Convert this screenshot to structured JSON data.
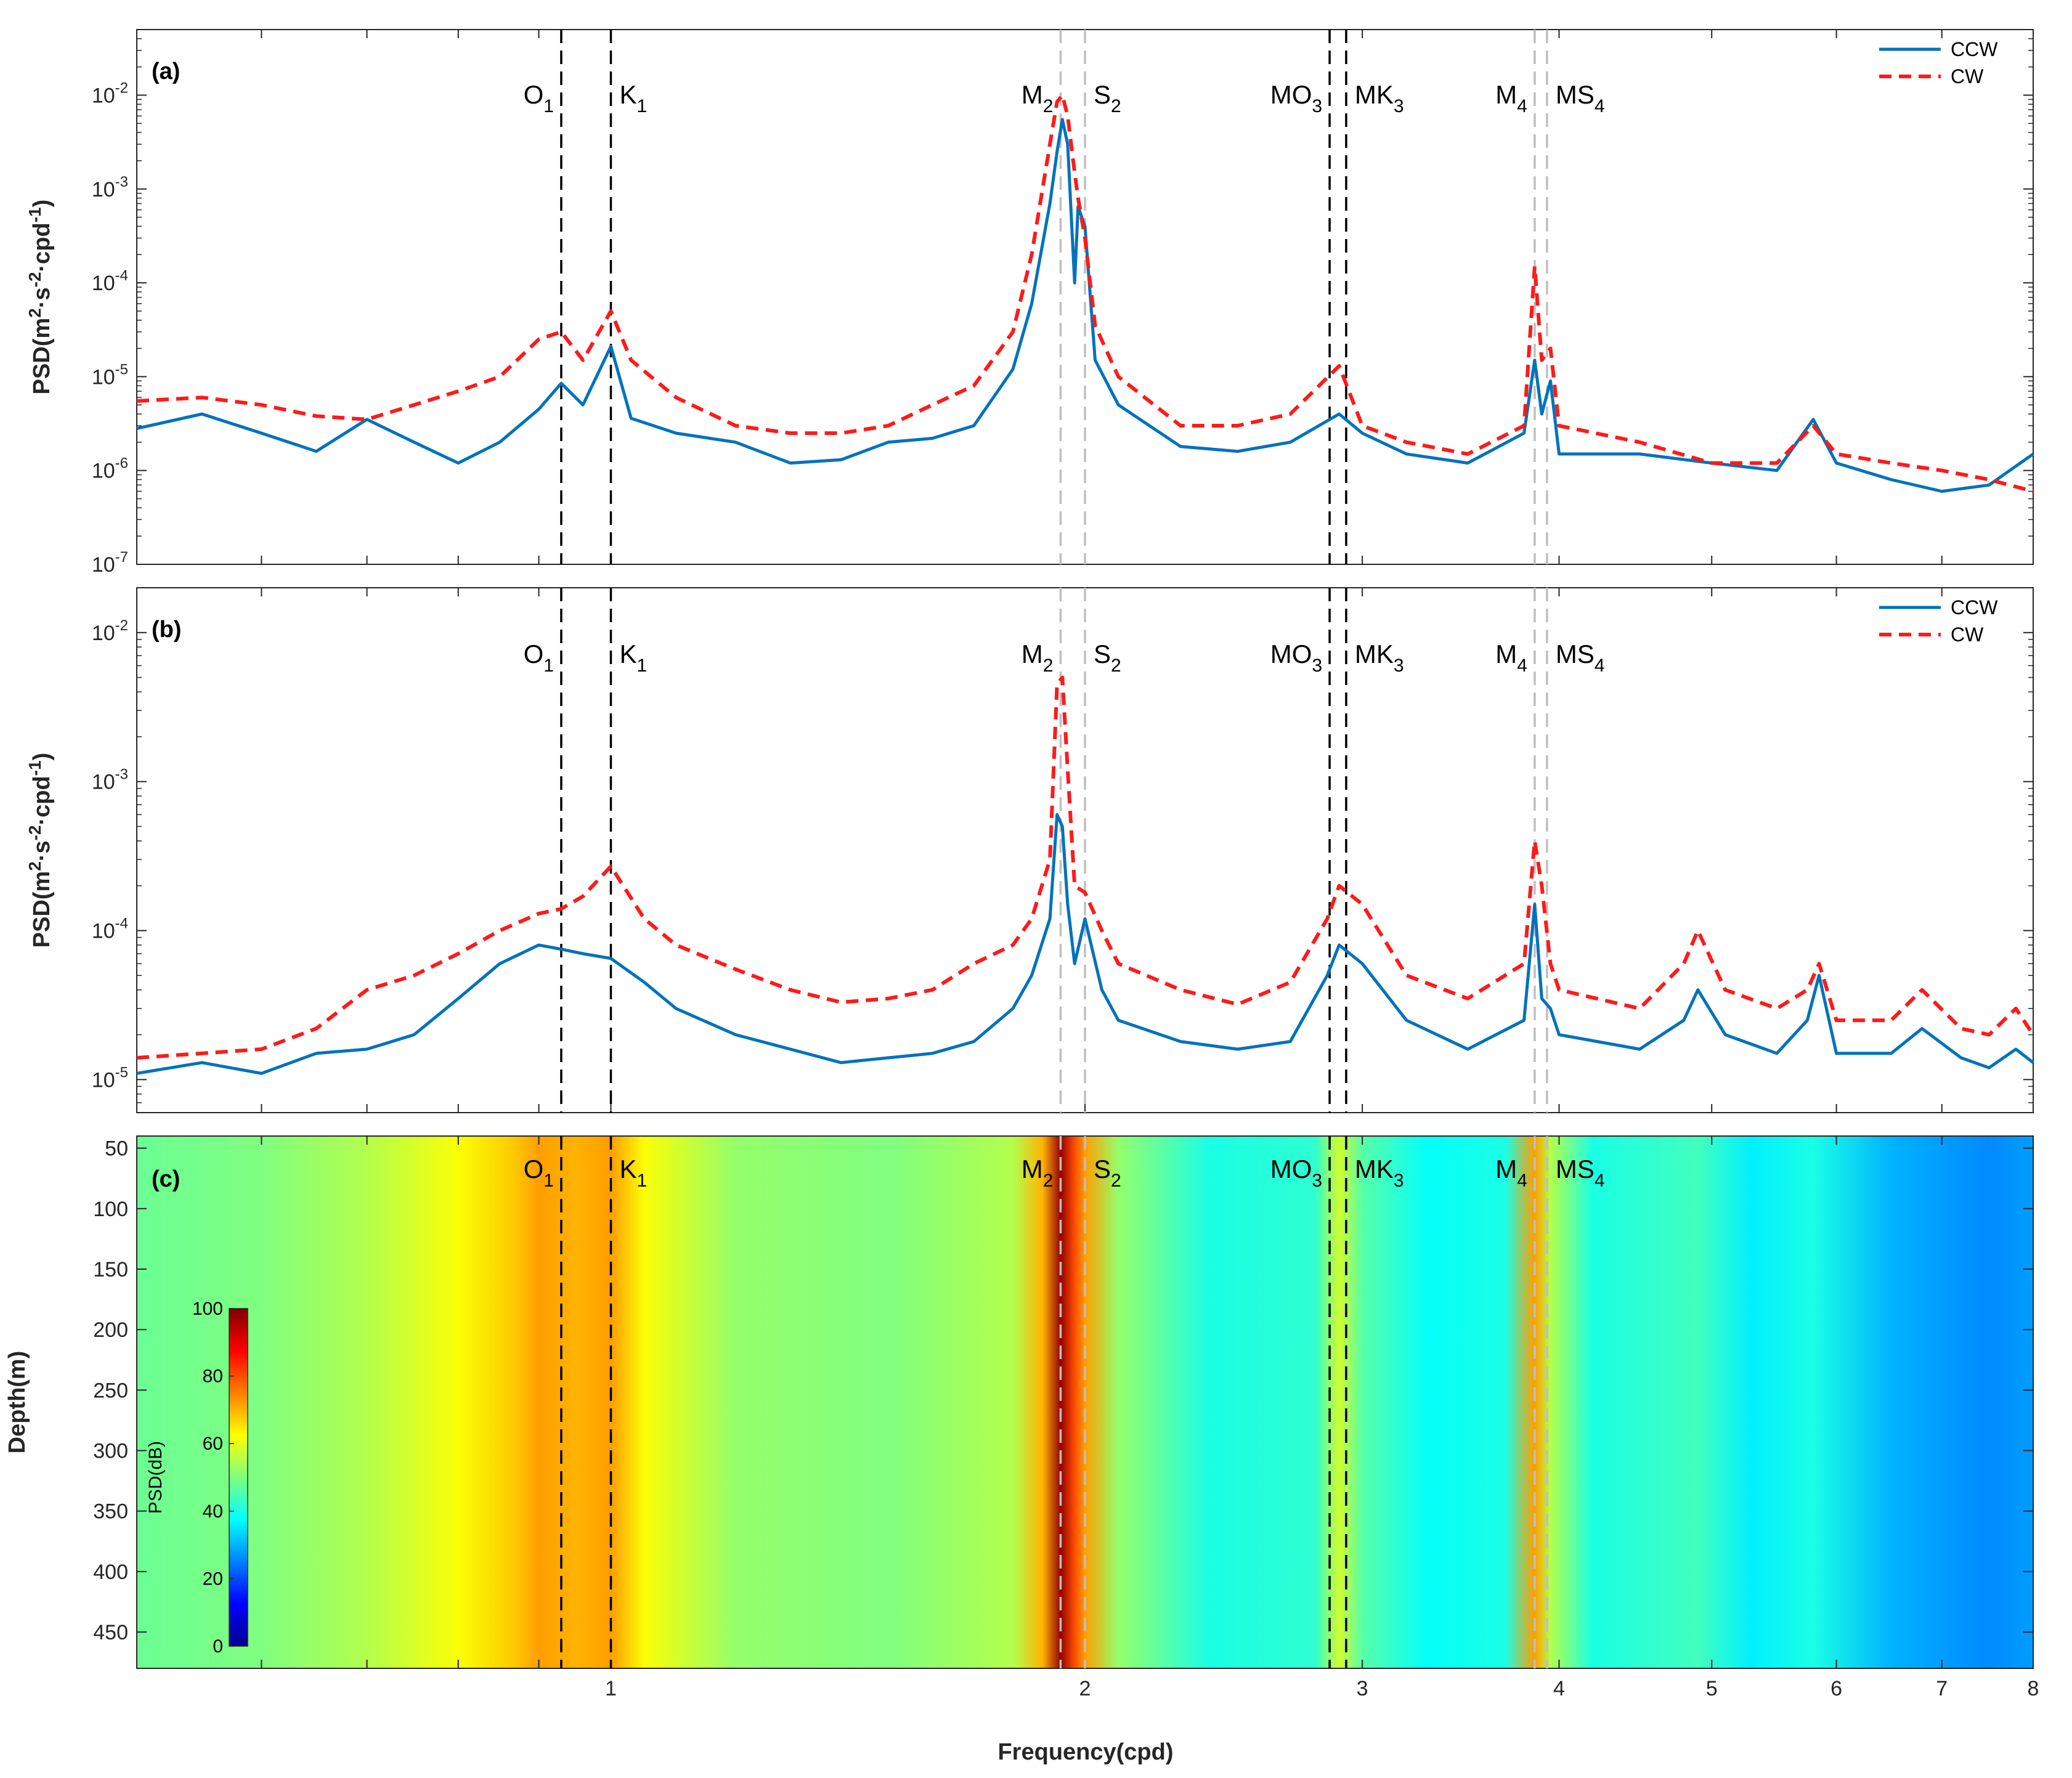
{
  "figure": {
    "xlabel": "Frequency(cpd)",
    "colors": {
      "ccw": "#0072BD",
      "cw": "#FF1A1A",
      "axis": "#262626"
    }
  },
  "chart_data": [
    {
      "panel": "(a)",
      "type": "line",
      "xscale": "log",
      "yscale": "log",
      "xlim": [
        0.5,
        8
      ],
      "ylim": [
        1e-07,
        0.05
      ],
      "ylabel_parts": {
        "main": "PSD(m",
        "e1": "2",
        "mid": "·s",
        "e2": "-2",
        "mid2": "·cpd",
        "e3": "-1",
        "end": ")"
      },
      "yticks": [
        {
          "v": 1e-07,
          "base": "10",
          "exp": "-7"
        },
        {
          "v": 1e-06,
          "base": "10",
          "exp": "-6"
        },
        {
          "v": 1e-05,
          "base": "10",
          "exp": "-5"
        },
        {
          "v": 0.0001,
          "base": "10",
          "exp": "-4"
        },
        {
          "v": 0.001,
          "base": "10",
          "exp": "-3"
        },
        {
          "v": 0.01,
          "base": "10",
          "exp": "-2"
        }
      ],
      "legend": {
        "position": "top-right",
        "entries": [
          "CCW",
          "CW"
        ]
      },
      "series": [
        {
          "name": "CCW",
          "style": "solid",
          "x": [
            0.5,
            0.55,
            0.6,
            0.65,
            0.7,
            0.75,
            0.8,
            0.85,
            0.9,
            0.93,
            0.96,
            1.0,
            1.03,
            1.1,
            1.2,
            1.3,
            1.4,
            1.5,
            1.6,
            1.7,
            1.8,
            1.85,
            1.9,
            1.92,
            1.935,
            1.95,
            1.97,
            1.98,
            2.0,
            2.03,
            2.1,
            2.3,
            2.5,
            2.7,
            2.9,
            3.0,
            3.2,
            3.5,
            3.8,
            3.86,
            3.9,
            3.95,
            4.0,
            4.5,
            5.0,
            5.5,
            5.8,
            6.0,
            6.5,
            7.0,
            7.5,
            8.0
          ],
          "y": [
            2.8e-06,
            4e-06,
            2.5e-06,
            1.6e-06,
            3.5e-06,
            2e-06,
            1.2e-06,
            2e-06,
            4.5e-06,
            8.5e-06,
            5e-06,
            2.1e-05,
            3.6e-06,
            2.5e-06,
            2e-06,
            1.2e-06,
            1.3e-06,
            2e-06,
            2.2e-06,
            3e-06,
            1.2e-05,
            6e-05,
            0.0007,
            0.0025,
            0.0055,
            0.003,
            0.0001,
            0.00065,
            0.0004,
            1.5e-05,
            5e-06,
            1.8e-06,
            1.6e-06,
            2e-06,
            4e-06,
            2.5e-06,
            1.5e-06,
            1.2e-06,
            2.5e-06,
            1.5e-05,
            4e-06,
            9e-06,
            1.5e-06,
            1.5e-06,
            1.2e-06,
            1e-06,
            3.5e-06,
            1.2e-06,
            8e-07,
            6e-07,
            7e-07,
            1.5e-06
          ]
        },
        {
          "name": "CW",
          "style": "dashed",
          "x": [
            0.5,
            0.55,
            0.6,
            0.65,
            0.7,
            0.75,
            0.8,
            0.85,
            0.9,
            0.93,
            0.96,
            1.0,
            1.03,
            1.1,
            1.2,
            1.3,
            1.4,
            1.5,
            1.6,
            1.7,
            1.8,
            1.85,
            1.9,
            1.92,
            1.935,
            1.95,
            1.97,
            1.98,
            2.0,
            2.03,
            2.1,
            2.3,
            2.5,
            2.7,
            2.9,
            3.0,
            3.2,
            3.5,
            3.8,
            3.86,
            3.9,
            3.95,
            4.0,
            4.5,
            5.0,
            5.5,
            5.8,
            6.0,
            6.5,
            7.0,
            7.5,
            8.0
          ],
          "y": [
            5.5e-06,
            6e-06,
            5e-06,
            3.8e-06,
            3.5e-06,
            5e-06,
            7e-06,
            1e-05,
            2.5e-05,
            3e-05,
            1.5e-05,
            5e-05,
            1.5e-05,
            6e-06,
            3e-06,
            2.5e-06,
            2.5e-06,
            3e-06,
            5e-06,
            8e-06,
            3e-05,
            0.0002,
            0.003,
            0.0085,
            0.01,
            0.006,
            0.0015,
            0.0008,
            0.0003,
            3.5e-05,
            1e-05,
            3e-06,
            3e-06,
            4e-06,
            1.3e-05,
            3e-06,
            2e-06,
            1.5e-06,
            3e-06,
            0.00015,
            1.5e-05,
            2e-05,
            3e-06,
            2e-06,
            1.2e-06,
            1.2e-06,
            3e-06,
            1.5e-06,
            1.2e-06,
            1e-06,
            8e-07,
            6e-07
          ]
        }
      ]
    },
    {
      "panel": "(b)",
      "type": "line",
      "xscale": "log",
      "yscale": "log",
      "xlim": [
        0.5,
        8
      ],
      "ylim": [
        6e-06,
        0.02
      ],
      "ylabel_parts": {
        "main": "PSD(m",
        "e1": "2",
        "mid": "·s",
        "e2": "-2",
        "mid2": "·cpd",
        "e3": "-1",
        "end": ")"
      },
      "yticks": [
        {
          "v": 1e-05,
          "base": "10",
          "exp": "-5"
        },
        {
          "v": 0.0001,
          "base": "10",
          "exp": "-4"
        },
        {
          "v": 0.001,
          "base": "10",
          "exp": "-3"
        },
        {
          "v": 0.01,
          "base": "10",
          "exp": "-2"
        }
      ],
      "legend": {
        "position": "top-right",
        "entries": [
          "CCW",
          "CW"
        ]
      },
      "series": [
        {
          "name": "CCW",
          "style": "solid",
          "x": [
            0.5,
            0.55,
            0.6,
            0.65,
            0.7,
            0.75,
            0.8,
            0.85,
            0.9,
            0.93,
            0.96,
            1.0,
            1.05,
            1.1,
            1.2,
            1.3,
            1.4,
            1.5,
            1.6,
            1.7,
            1.8,
            1.85,
            1.9,
            1.92,
            1.935,
            1.95,
            1.97,
            2.0,
            2.05,
            2.1,
            2.3,
            2.5,
            2.7,
            2.85,
            2.9,
            3.0,
            3.2,
            3.5,
            3.8,
            3.86,
            3.9,
            3.95,
            4.0,
            4.5,
            4.8,
            4.9,
            5.1,
            5.5,
            5.75,
            5.85,
            6.0,
            6.5,
            6.8,
            7.2,
            7.5,
            7.8,
            8.0
          ],
          "y": [
            1.1e-05,
            1.3e-05,
            1.1e-05,
            1.5e-05,
            1.6e-05,
            2e-05,
            3.5e-05,
            6e-05,
            8e-05,
            7.5e-05,
            7e-05,
            6.5e-05,
            4.5e-05,
            3e-05,
            2e-05,
            1.6e-05,
            1.3e-05,
            1.4e-05,
            1.5e-05,
            1.8e-05,
            3e-05,
            5e-05,
            0.00012,
            0.0006,
            0.0005,
            0.00015,
            6e-05,
            0.00012,
            4e-05,
            2.5e-05,
            1.8e-05,
            1.6e-05,
            1.8e-05,
            5e-05,
            8e-05,
            6e-05,
            2.5e-05,
            1.6e-05,
            2.5e-05,
            0.00015,
            3.5e-05,
            3e-05,
            2e-05,
            1.6e-05,
            2.5e-05,
            4e-05,
            2e-05,
            1.5e-05,
            2.5e-05,
            5e-05,
            1.5e-05,
            1.5e-05,
            2.2e-05,
            1.4e-05,
            1.2e-05,
            1.6e-05,
            1.3e-05
          ]
        },
        {
          "name": "CW",
          "style": "dashed",
          "x": [
            0.5,
            0.55,
            0.6,
            0.65,
            0.7,
            0.75,
            0.8,
            0.85,
            0.9,
            0.93,
            0.96,
            1.0,
            1.05,
            1.1,
            1.2,
            1.3,
            1.4,
            1.5,
            1.6,
            1.7,
            1.8,
            1.85,
            1.9,
            1.92,
            1.935,
            1.95,
            1.97,
            2.0,
            2.05,
            2.1,
            2.3,
            2.5,
            2.7,
            2.85,
            2.9,
            3.0,
            3.2,
            3.5,
            3.8,
            3.86,
            3.9,
            3.95,
            4.0,
            4.5,
            4.8,
            4.9,
            5.1,
            5.5,
            5.75,
            5.85,
            6.0,
            6.5,
            6.8,
            7.2,
            7.5,
            7.8,
            8.0
          ],
          "y": [
            1.4e-05,
            1.5e-05,
            1.6e-05,
            2.2e-05,
            4e-05,
            5e-05,
            7e-05,
            0.0001,
            0.00013,
            0.00014,
            0.00017,
            0.00027,
            0.00012,
            8e-05,
            5.5e-05,
            4e-05,
            3.3e-05,
            3.5e-05,
            4e-05,
            6e-05,
            8e-05,
            0.00012,
            0.0003,
            0.0045,
            0.005,
            0.0012,
            0.0002,
            0.00018,
            0.0001,
            6e-05,
            4e-05,
            3.2e-05,
            4.5e-05,
            0.00012,
            0.0002,
            0.00015,
            5e-05,
            3.5e-05,
            6e-05,
            0.0004,
            0.0002,
            6e-05,
            4e-05,
            3e-05,
            6e-05,
            0.0001,
            4e-05,
            3e-05,
            4e-05,
            6e-05,
            2.5e-05,
            2.5e-05,
            4e-05,
            2.2e-05,
            2e-05,
            3e-05,
            2e-05
          ]
        }
      ]
    },
    {
      "panel": "(c)",
      "type": "heatmap",
      "xscale": "log",
      "xlim": [
        0.5,
        8
      ],
      "ylim_depth": [
        40,
        480
      ],
      "ylabel": "Depth(m)",
      "yticks": [
        50,
        100,
        150,
        200,
        250,
        300,
        350,
        400,
        450
      ],
      "xticks": [
        1,
        2,
        3,
        4,
        5,
        6,
        7,
        8
      ],
      "colorbar": {
        "label": "PSD(dB)",
        "ticks": [
          0,
          20,
          40,
          60,
          80,
          100
        ],
        "range": [
          0,
          100
        ]
      },
      "band_levels_db": [
        {
          "f": 0.5,
          "db": 48
        },
        {
          "f": 0.6,
          "db": 50
        },
        {
          "f": 0.7,
          "db": 55
        },
        {
          "f": 0.8,
          "db": 62
        },
        {
          "f": 0.87,
          "db": 68
        },
        {
          "f": 0.9,
          "db": 72
        },
        {
          "f": 0.95,
          "db": 70
        },
        {
          "f": 1.0,
          "db": 72
        },
        {
          "f": 1.05,
          "db": 62
        },
        {
          "f": 1.2,
          "db": 52
        },
        {
          "f": 1.5,
          "db": 50
        },
        {
          "f": 1.8,
          "db": 55
        },
        {
          "f": 1.88,
          "db": 70
        },
        {
          "f": 1.93,
          "db": 98
        },
        {
          "f": 1.97,
          "db": 80
        },
        {
          "f": 2.0,
          "db": 72
        },
        {
          "f": 2.1,
          "db": 52
        },
        {
          "f": 2.4,
          "db": 40
        },
        {
          "f": 2.8,
          "db": 42
        },
        {
          "f": 2.9,
          "db": 58
        },
        {
          "f": 3.0,
          "db": 46
        },
        {
          "f": 3.3,
          "db": 38
        },
        {
          "f": 3.7,
          "db": 40
        },
        {
          "f": 3.86,
          "db": 72
        },
        {
          "f": 3.95,
          "db": 55
        },
        {
          "f": 4.2,
          "db": 40
        },
        {
          "f": 4.9,
          "db": 44
        },
        {
          "f": 5.3,
          "db": 36
        },
        {
          "f": 5.8,
          "db": 40
        },
        {
          "f": 6.5,
          "db": 30
        },
        {
          "f": 7.5,
          "db": 26
        },
        {
          "f": 8.0,
          "db": 28
        }
      ]
    }
  ],
  "constituents": [
    {
      "name": "O",
      "sub": "1",
      "f": 0.93,
      "line_color": "#000000"
    },
    {
      "name": "K",
      "sub": "1",
      "f": 1.0,
      "line_color": "#000000"
    },
    {
      "name": "M",
      "sub": "2",
      "f": 1.93,
      "line_color": "#BFBFBF"
    },
    {
      "name": "S",
      "sub": "2",
      "f": 2.0,
      "line_color": "#BFBFBF"
    },
    {
      "name": "MO",
      "sub": "3",
      "f": 2.86,
      "line_color": "#000000"
    },
    {
      "name": "MK",
      "sub": "3",
      "f": 2.93,
      "line_color": "#000000"
    },
    {
      "name": "M",
      "sub": "4",
      "f": 3.86,
      "line_color": "#BFBFBF"
    },
    {
      "name": "MS",
      "sub": "4",
      "f": 3.93,
      "line_color": "#BFBFBF"
    }
  ]
}
